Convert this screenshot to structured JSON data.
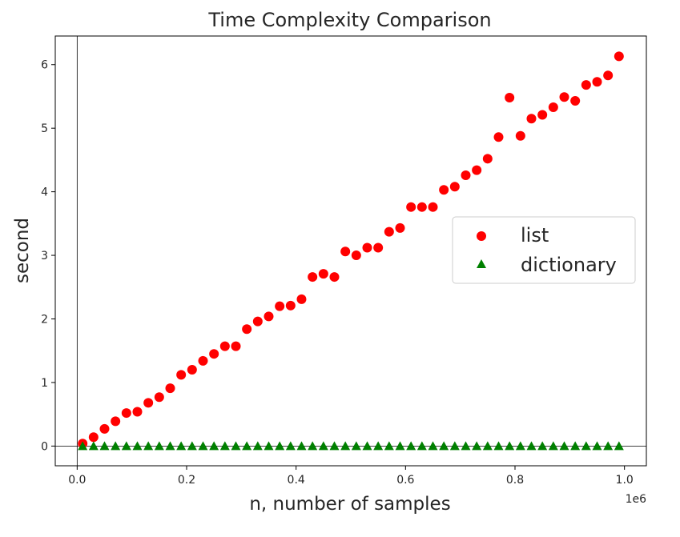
{
  "chart_data": {
    "type": "scatter",
    "title": "Time Complexity Comparison",
    "xlabel": "n, number of samples",
    "ylabel": "second",
    "x_offset_label": "1e6",
    "xlim": [
      -40000,
      1040000
    ],
    "ylim": [
      -0.31,
      6.45
    ],
    "xticks": [
      0,
      200000,
      400000,
      600000,
      800000,
      1000000
    ],
    "xtick_labels": [
      "0.0",
      "0.2",
      "0.4",
      "0.6",
      "0.8",
      "1.0"
    ],
    "yticks": [
      0,
      1,
      2,
      3,
      4,
      5,
      6
    ],
    "ytick_labels": [
      "0",
      "1",
      "2",
      "3",
      "4",
      "5",
      "6"
    ],
    "reference_lines": {
      "x": 0,
      "y": 0
    },
    "grid": false,
    "legend_position": "center-right",
    "x": [
      10000,
      30000,
      50000,
      70000,
      90000,
      110000,
      130000,
      150000,
      170000,
      190000,
      210000,
      230000,
      250000,
      270000,
      290000,
      310000,
      330000,
      350000,
      370000,
      390000,
      410000,
      430000,
      450000,
      470000,
      490000,
      510000,
      530000,
      550000,
      570000,
      590000,
      610000,
      630000,
      650000,
      670000,
      690000,
      710000,
      730000,
      750000,
      770000,
      790000,
      810000,
      830000,
      850000,
      870000,
      890000,
      910000,
      930000,
      950000,
      970000,
      990000
    ],
    "series": [
      {
        "name": "list",
        "marker": "circle",
        "color": "#ff0000",
        "values": [
          0.04,
          0.14,
          0.27,
          0.39,
          0.52,
          0.54,
          0.68,
          0.77,
          0.91,
          1.12,
          1.2,
          1.34,
          1.45,
          1.57,
          1.57,
          1.84,
          1.96,
          2.04,
          2.2,
          2.21,
          2.31,
          2.66,
          2.71,
          2.66,
          3.06,
          3.0,
          3.12,
          3.12,
          3.37,
          3.43,
          3.76,
          3.76,
          3.76,
          4.03,
          4.08,
          4.26,
          4.34,
          4.52,
          4.86,
          5.48,
          4.88,
          5.15,
          5.21,
          5.33,
          5.49,
          5.43,
          5.68,
          5.73,
          5.83,
          6.13
        ]
      },
      {
        "name": "dictionary",
        "marker": "triangle",
        "color": "#008000",
        "values": [
          0,
          0,
          0,
          0,
          0,
          0,
          0,
          0,
          0,
          0,
          0,
          0,
          0,
          0,
          0,
          0,
          0,
          0,
          0,
          0,
          0,
          0,
          0,
          0,
          0,
          0,
          0,
          0,
          0,
          0,
          0,
          0,
          0,
          0,
          0,
          0,
          0,
          0,
          0,
          0,
          0,
          0,
          0,
          0,
          0,
          0,
          0,
          0,
          0,
          0
        ]
      }
    ]
  }
}
